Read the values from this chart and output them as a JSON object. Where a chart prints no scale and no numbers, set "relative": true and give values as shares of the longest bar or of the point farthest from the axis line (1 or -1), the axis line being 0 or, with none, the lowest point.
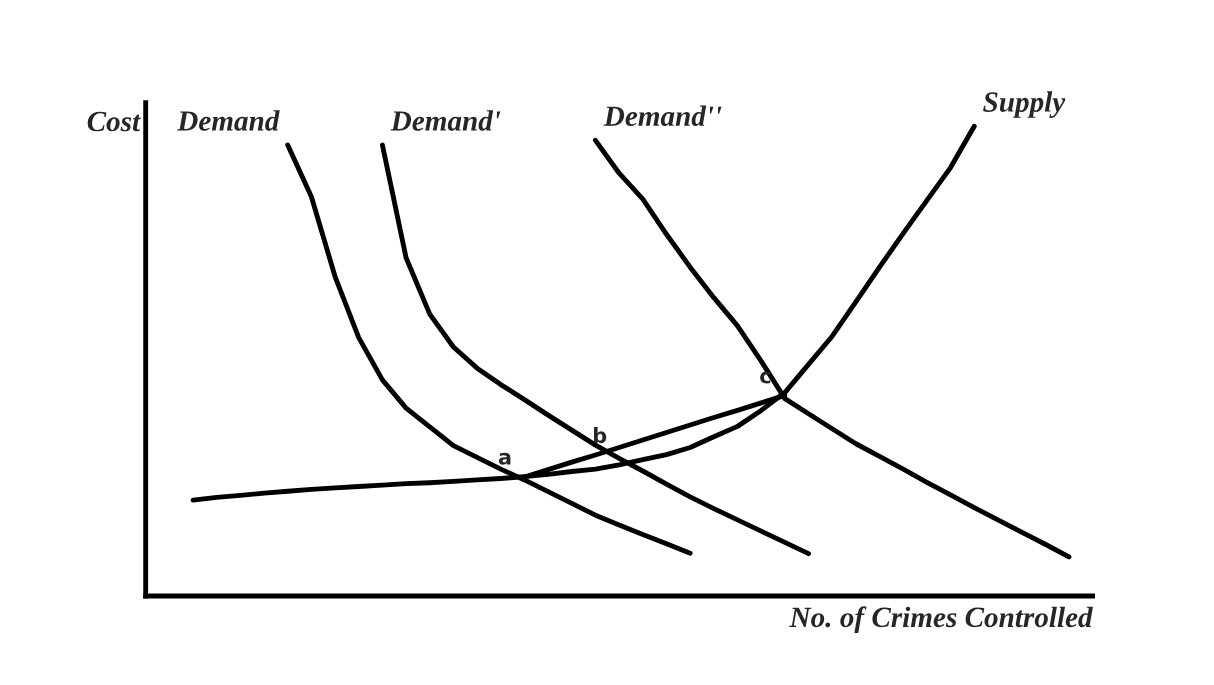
{
  "chart_data": {
    "type": "line",
    "relative": true,
    "xlabel": "No. of Crimes Controlled",
    "ylabel": "Cost",
    "marker": "none",
    "line_style": "solid",
    "categories": [
      null,
      null,
      null,
      null,
      null,
      null,
      null,
      null,
      null,
      null,
      null,
      null,
      null,
      null,
      null,
      null,
      null,
      null,
      null,
      null,
      null,
      null,
      null,
      null,
      null,
      null,
      null,
      null,
      null,
      null,
      null,
      null,
      null,
      null,
      null,
      null,
      null,
      null,
      null,
      null,
      null
    ],
    "series": [
      {
        "name": "Demand",
        "color": "#000000",
        "values": [
          null,
          null,
          null,
          null,
          null,
          null,
          0.96,
          0.85,
          0.68,
          0.55,
          0.46,
          0.4,
          0.36,
          0.32,
          0.295,
          0.27,
          0.247,
          0.222,
          0.197,
          0.172,
          0.151,
          0.131,
          0.111,
          0.091,
          null,
          null,
          null,
          null,
          null,
          null,
          null,
          null,
          null,
          null,
          null,
          null,
          null,
          null,
          null,
          null,
          null
        ]
      },
      {
        "name": "Demand'",
        "color": "#000000",
        "values": [
          null,
          null,
          null,
          null,
          null,
          null,
          null,
          null,
          null,
          null,
          0.96,
          0.72,
          0.6,
          0.53,
          0.485,
          0.45,
          0.418,
          0.385,
          0.353,
          0.321,
          0.293,
          0.266,
          0.238,
          0.211,
          0.186,
          0.162,
          0.138,
          0.114,
          0.09,
          null,
          null,
          null,
          null,
          null,
          null,
          null,
          null,
          null,
          null,
          null,
          null
        ]
      },
      {
        "name": "Demand''",
        "color": "#000000",
        "values": [
          null,
          null,
          null,
          null,
          null,
          null,
          null,
          null,
          null,
          null,
          null,
          null,
          null,
          null,
          null,
          null,
          null,
          null,
          null,
          0.97,
          0.9,
          0.845,
          0.77,
          0.7,
          0.635,
          0.575,
          0.5,
          0.42,
          0.388,
          0.356,
          0.324,
          0.297,
          0.27,
          0.242,
          0.215,
          0.188,
          0.162,
          0.136,
          0.11,
          0.083,
          null
        ]
      },
      {
        "name": "Supply",
        "color": "#000000",
        "values": [
          null,
          null,
          0.204,
          0.21,
          0.214,
          0.219,
          0.223,
          0.227,
          0.23,
          0.233,
          0.236,
          0.239,
          0.241,
          0.244,
          0.247,
          0.25,
          0.254,
          0.259,
          0.265,
          0.27,
          0.279,
          0.29,
          0.301,
          0.316,
          0.339,
          0.361,
          0.395,
          0.433,
          0.493,
          0.553,
          0.626,
          0.7,
          0.772,
          0.842,
          0.912,
          1.0,
          null,
          null,
          null,
          null,
          null
        ]
      },
      {
        "color": "#000000",
        "values": [
          null,
          null,
          null,
          null,
          null,
          null,
          null,
          null,
          null,
          null,
          null,
          null,
          null,
          null,
          null,
          null,
          0.253,
          0.269,
          0.285,
          0.3,
          0.316,
          0.332,
          0.348,
          0.364,
          0.38,
          0.395,
          0.411,
          0.427,
          null,
          null,
          null,
          null,
          null,
          null,
          null,
          null,
          null,
          null,
          null,
          null,
          null
        ]
      }
    ],
    "annotations": [
      "a",
      "b",
      "c"
    ]
  }
}
